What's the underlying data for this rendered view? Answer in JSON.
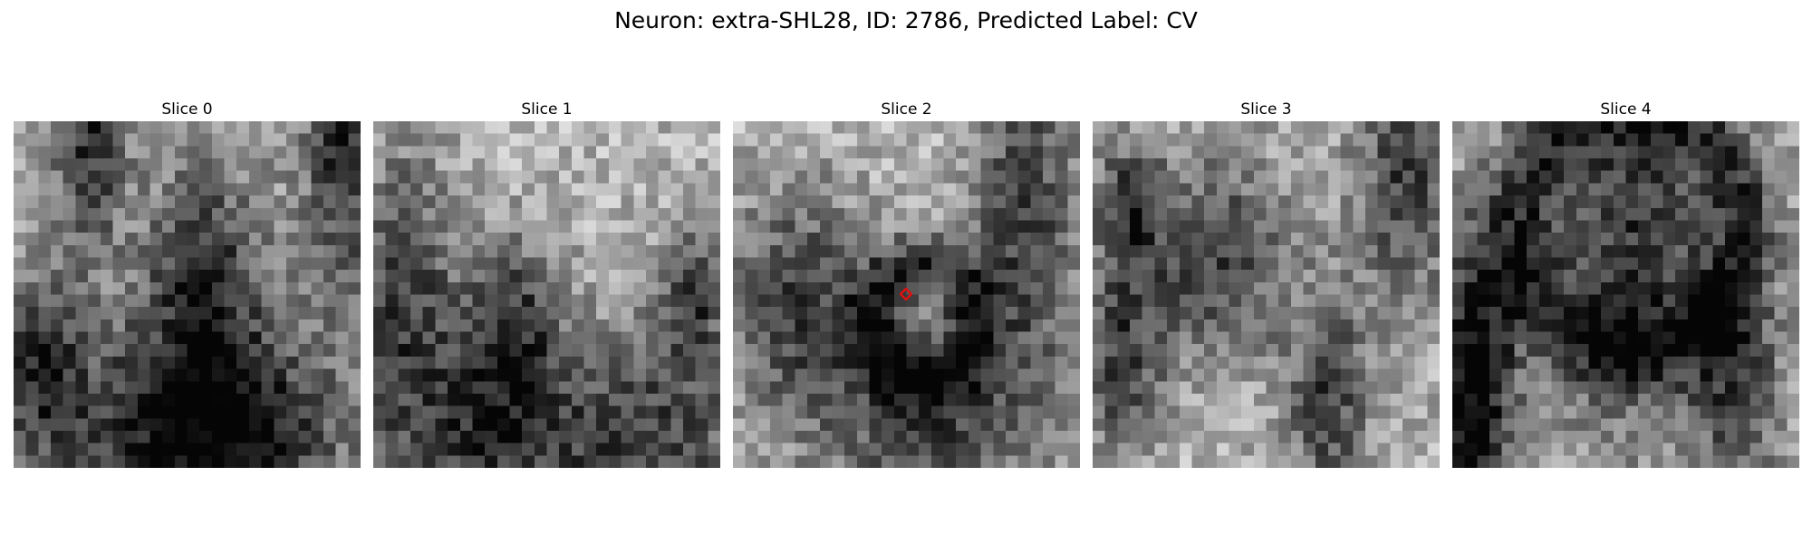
{
  "figure": {
    "title": "Neuron: extra-SHL28, ID: 2786, Predicted Label: CV"
  },
  "slices": [
    {
      "title": "Slice 0",
      "dark_regions": [
        [
          0.22,
          0.05,
          0.1,
          0.3
        ],
        [
          0.95,
          0.12,
          0.1,
          0.35
        ],
        [
          0.55,
          0.45,
          0.15,
          0.3
        ],
        [
          0.4,
          0.88,
          0.3,
          0.3
        ],
        [
          0.08,
          0.7,
          0.1,
          0.25
        ],
        [
          0.7,
          0.92,
          0.25,
          0.3
        ]
      ],
      "base": 0.62
    },
    {
      "title": "Slice 1",
      "dark_regions": [
        [
          0.08,
          0.48,
          0.15,
          0.4
        ],
        [
          0.4,
          0.58,
          0.15,
          0.25
        ],
        [
          0.8,
          0.92,
          0.3,
          0.3
        ],
        [
          0.3,
          0.95,
          0.3,
          0.3
        ],
        [
          0.92,
          0.5,
          0.1,
          0.2
        ]
      ],
      "base": 0.7
    },
    {
      "title": "Slice 2",
      "dark_regions": [
        [
          0.85,
          0.24,
          0.16,
          0.55
        ],
        [
          0.18,
          0.52,
          0.2,
          0.35
        ],
        [
          0.55,
          0.9,
          0.3,
          0.4
        ]
      ],
      "rings": [
        [
          0.55,
          0.58,
          0.15,
          0.17,
          0.09
        ]
      ],
      "base": 0.72
    },
    {
      "title": "Slice 3",
      "dark_regions": [
        [
          0.35,
          0.4,
          0.22,
          0.3
        ],
        [
          0.9,
          0.15,
          0.15,
          0.4
        ],
        [
          0.68,
          0.8,
          0.12,
          0.3
        ],
        [
          0.08,
          0.7,
          0.12,
          0.25
        ],
        [
          0.1,
          0.25,
          0.1,
          0.2
        ]
      ],
      "base": 0.7
    },
    {
      "title": "Slice 4",
      "dark_regions": [
        [
          0.52,
          0.34,
          0.22,
          0.55
        ],
        [
          0.08,
          0.6,
          0.12,
          0.35
        ],
        [
          0.82,
          0.75,
          0.12,
          0.3
        ],
        [
          0.05,
          0.95,
          0.1,
          0.4
        ]
      ],
      "rings": [
        [
          0.52,
          0.3,
          0.32,
          0.36,
          0.12
        ]
      ],
      "base": 0.66
    }
  ],
  "marker": {
    "slice": 2,
    "x": 0.5,
    "y": 0.5,
    "color": "#e01010"
  }
}
